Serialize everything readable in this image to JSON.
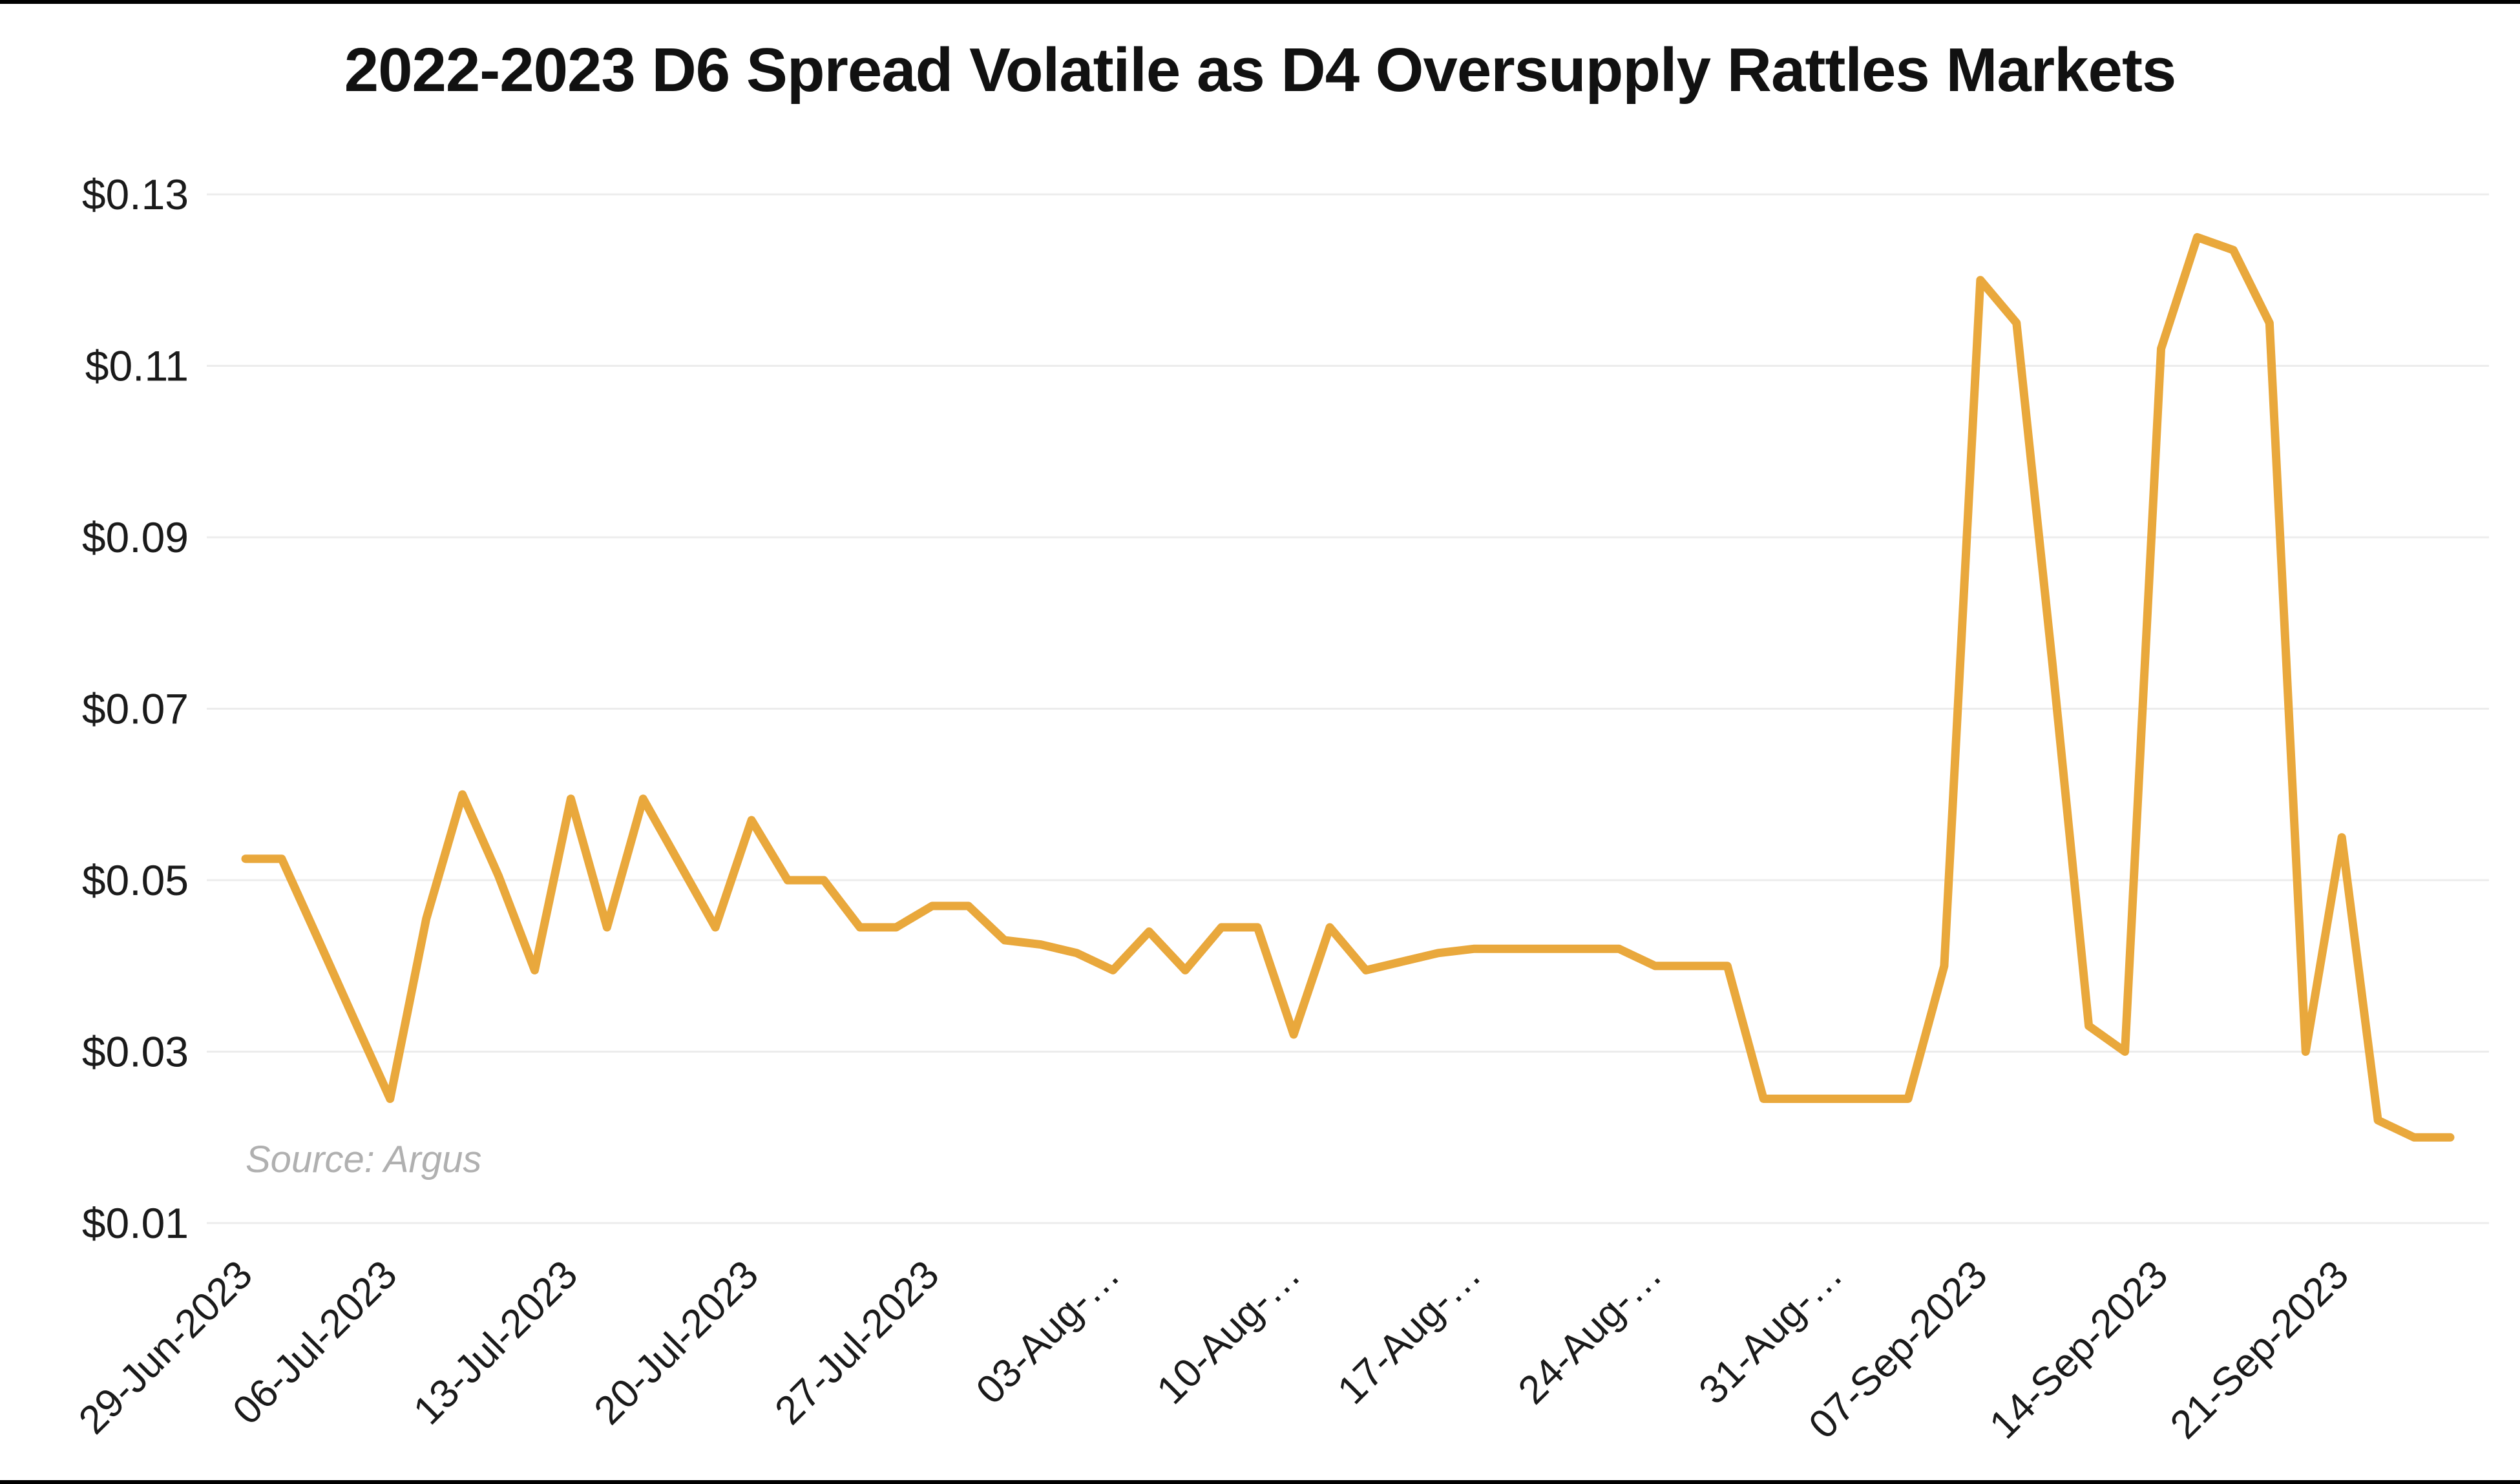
{
  "chart_data": {
    "type": "line",
    "title": "2022-2023 D6 Spread Volatile as D4 Oversupply Rattles Markets",
    "source_note": "Source: Argus",
    "xlabel": "",
    "ylabel": "",
    "ylim": [
      0.01,
      0.13
    ],
    "grid": "horizontal",
    "legend": "none",
    "line_color": "#E9A83C",
    "grid_color": "#ECECEC",
    "axis_text_color": "#1a1a1a",
    "y_tick_values": [
      0.13,
      0.11,
      0.09,
      0.07,
      0.05,
      0.03,
      0.01
    ],
    "y_tick_labels": [
      "$0.13",
      "$0.11",
      "$0.09",
      "$0.07",
      "$0.05",
      "$0.03",
      "$0.01"
    ],
    "x_tick_labels": [
      "29-Jun-2023",
      "06-Jul-2023",
      "13-Jul-2023",
      "20-Jul-2023",
      "27-Jul-2023",
      "03-Aug-…",
      "10-Aug-…",
      "17-Aug-…",
      "24-Aug-…",
      "31-Aug-…",
      "07-Sep-2023",
      "14-Sep-2023",
      "21-Sep-2023"
    ],
    "x_tick_indices": [
      0,
      4,
      9,
      14,
      19,
      24,
      29,
      34,
      39,
      44,
      48,
      53,
      58
    ],
    "series_name": "D6 spread",
    "dates": [
      "29-Jun-2023",
      "30-Jun-2023",
      "03-Jul-2023",
      "05-Jul-2023",
      "06-Jul-2023",
      "07-Jul-2023",
      "10-Jul-2023",
      "11-Jul-2023",
      "12-Jul-2023",
      "13-Jul-2023",
      "14-Jul-2023",
      "17-Jul-2023",
      "18-Jul-2023",
      "19-Jul-2023",
      "20-Jul-2023",
      "21-Jul-2023",
      "24-Jul-2023",
      "25-Jul-2023",
      "26-Jul-2023",
      "27-Jul-2023",
      "28-Jul-2023",
      "31-Jul-2023",
      "01-Aug-2023",
      "02-Aug-2023",
      "03-Aug-2023",
      "04-Aug-2023",
      "07-Aug-2023",
      "08-Aug-2023",
      "09-Aug-2023",
      "10-Aug-2023",
      "11-Aug-2023",
      "14-Aug-2023",
      "15-Aug-2023",
      "16-Aug-2023",
      "17-Aug-2023",
      "18-Aug-2023",
      "21-Aug-2023",
      "22-Aug-2023",
      "23-Aug-2023",
      "24-Aug-2023",
      "25-Aug-2023",
      "28-Aug-2023",
      "29-Aug-2023",
      "30-Aug-2023",
      "31-Aug-2023",
      "01-Sep-2023",
      "05-Sep-2023",
      "06-Sep-2023",
      "07-Sep-2023",
      "08-Sep-2023",
      "11-Sep-2023",
      "12-Sep-2023",
      "13-Sep-2023",
      "14-Sep-2023",
      "15-Sep-2023",
      "18-Sep-2023",
      "19-Sep-2023",
      "20-Sep-2023",
      "21-Sep-2023",
      "22-Sep-2023",
      "25-Sep-2023",
      "26-Sep-2023"
    ],
    "values": [
      0.0525,
      0.0525,
      0.0432,
      0.0338,
      0.0245,
      0.0455,
      0.06,
      0.0505,
      0.0395,
      0.0595,
      0.0445,
      0.0595,
      0.052,
      0.0445,
      0.057,
      0.05,
      0.05,
      0.0445,
      0.0445,
      0.047,
      0.047,
      0.043,
      0.0425,
      0.0415,
      0.0395,
      0.044,
      0.0395,
      0.0445,
      0.0445,
      0.032,
      0.0445,
      0.0395,
      0.0405,
      0.0415,
      0.042,
      0.042,
      0.042,
      0.042,
      0.042,
      0.04,
      0.04,
      0.04,
      0.0245,
      0.0245,
      0.0245,
      0.0245,
      0.0245,
      0.04,
      0.12,
      0.115,
      0.075,
      0.033,
      0.03,
      0.112,
      0.125,
      0.1235,
      0.115,
      0.03,
      0.055,
      0.022,
      0.02,
      0.02
    ]
  }
}
